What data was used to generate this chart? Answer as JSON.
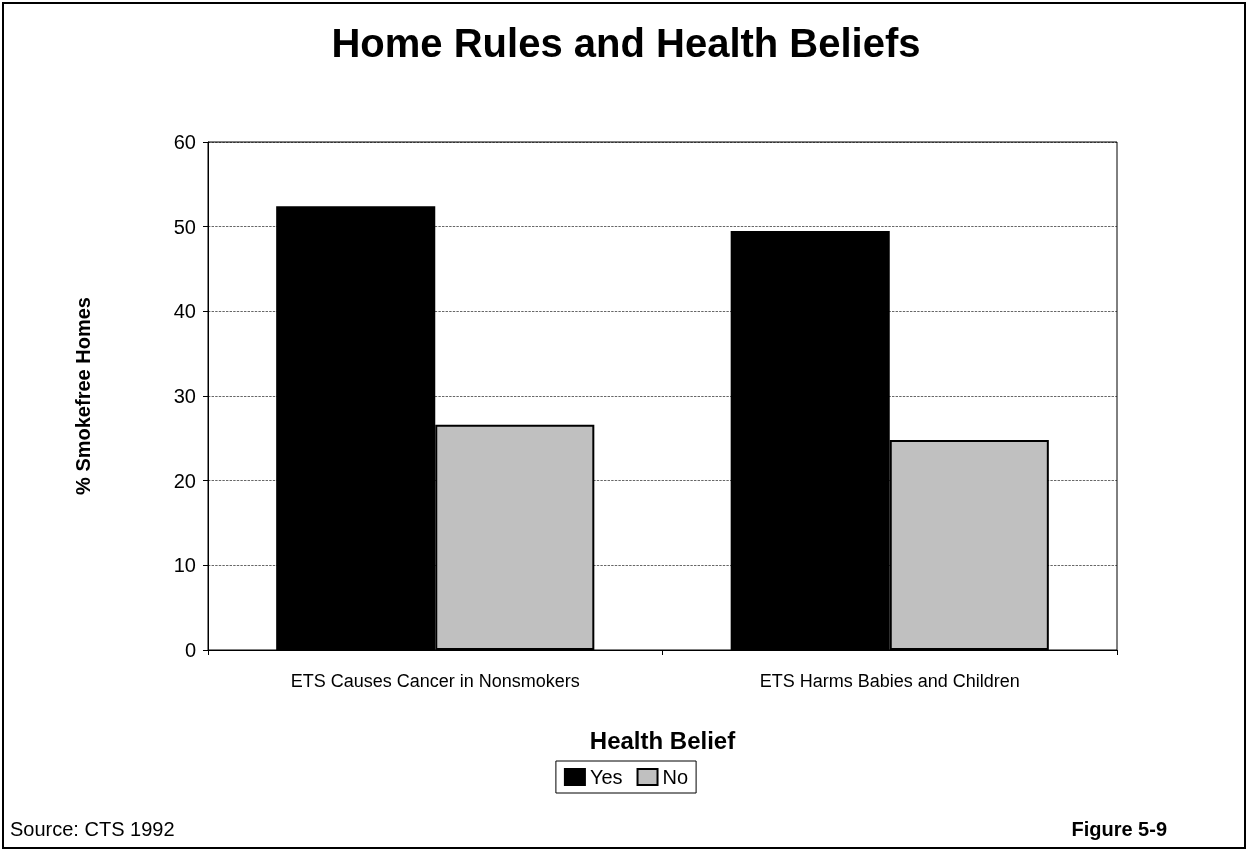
{
  "chart_data": {
    "type": "bar",
    "title": "Home Rules and Health Beliefs",
    "xlabel": "Health Belief",
    "ylabel": "% Smokefree Homes",
    "categories": [
      "ETS Causes Cancer in Nonsmokers",
      "ETS Harms Babies and Children"
    ],
    "series": [
      {
        "name": "Yes",
        "color": "#000000",
        "values": [
          52.4,
          49.5
        ]
      },
      {
        "name": "No",
        "color": "#c0c0c0",
        "values": [
          26.6,
          24.8
        ]
      }
    ],
    "ylim": [
      0,
      60
    ],
    "yticks": [
      0,
      10,
      20,
      30,
      40,
      50,
      60
    ],
    "grid": "y",
    "line_style": "dashed",
    "legend": "bottom",
    "annotations": [
      "Source: CTS 1992",
      "Figure 5-9"
    ]
  }
}
